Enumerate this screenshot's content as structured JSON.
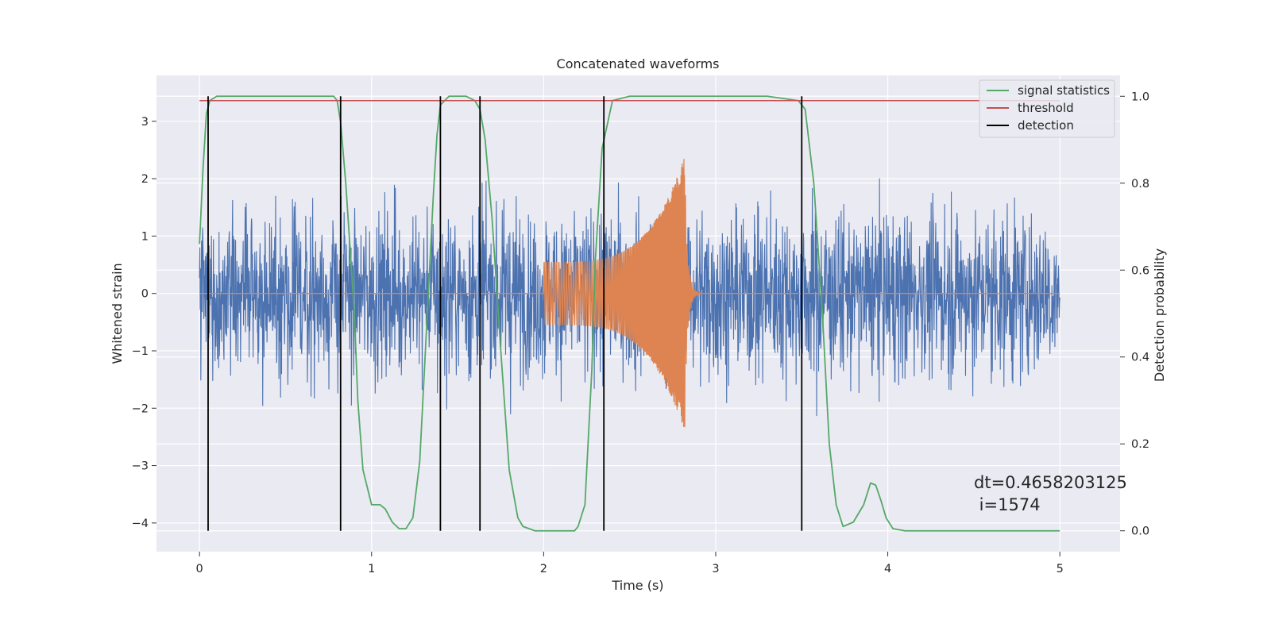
{
  "chart_data": {
    "type": "line",
    "title": "Concatenated waveforms",
    "xlabel": "Time (s)",
    "ylabel": "Whitened strain",
    "y2label": "Detection probability",
    "xlim": [
      -0.25,
      5.35
    ],
    "ylim": [
      -4.5,
      3.8
    ],
    "y2lim": [
      -0.048,
      1.048
    ],
    "xticks": [
      0,
      1,
      2,
      3,
      4,
      5
    ],
    "yticks": [
      -4,
      -3,
      -2,
      -1,
      0,
      1,
      2,
      3
    ],
    "y2ticks": [
      0.0,
      0.2,
      0.4,
      0.6,
      0.8,
      1.0
    ],
    "grid": true,
    "legend_position": "top-right",
    "legend": [
      "signal statistics",
      "threshold",
      "detection"
    ],
    "annotation": [
      "dt=0.4658203125",
      " i=1574"
    ],
    "colors": {
      "background": "#eaeaf2",
      "grid": "#ffffff",
      "strain": "#4c72b0",
      "waveform": "#dd8452",
      "signal_statistics": "#55a868",
      "threshold": "#c44e52",
      "detection": "#000000"
    },
    "series": [
      {
        "name": "strain",
        "kind": "noise",
        "axis": "left",
        "x_range": [
          0,
          5
        ],
        "std": 0.72,
        "peak_min": -3.4,
        "peak_max": 3.4
      },
      {
        "name": "waveform",
        "kind": "chirp",
        "axis": "left",
        "t_start": 2.0,
        "t_merge": 2.82,
        "t_end": 5.0,
        "amp_start": 0.55,
        "amp_peak": 2.4,
        "ringdown_end": 2.95
      },
      {
        "name": "signal statistics",
        "axis": "right",
        "x": [
          0,
          0.02,
          0.04,
          0.06,
          0.1,
          0.2,
          0.6,
          0.78,
          0.8,
          0.82,
          0.85,
          0.9,
          0.92,
          0.95,
          1.0,
          1.05,
          1.08,
          1.12,
          1.16,
          1.2,
          1.24,
          1.28,
          1.32,
          1.36,
          1.38,
          1.4,
          1.45,
          1.5,
          1.55,
          1.6,
          1.63,
          1.66,
          1.7,
          1.75,
          1.8,
          1.85,
          1.88,
          1.95,
          2.1,
          2.18,
          2.2,
          2.24,
          2.28,
          2.3,
          2.34,
          2.4,
          2.5,
          3.3,
          3.48,
          3.52,
          3.57,
          3.62,
          3.66,
          3.7,
          3.74,
          3.8,
          3.86,
          3.9,
          3.93,
          3.96,
          3.99,
          4.03,
          4.1,
          4.5,
          5.0
        ],
        "y": [
          0.66,
          0.83,
          0.96,
          0.99,
          1.0,
          1.0,
          1.0,
          1.0,
          0.99,
          0.94,
          0.8,
          0.5,
          0.3,
          0.14,
          0.06,
          0.06,
          0.05,
          0.02,
          0.005,
          0.005,
          0.03,
          0.16,
          0.47,
          0.78,
          0.91,
          0.98,
          1.0,
          1.0,
          1.0,
          0.99,
          0.97,
          0.9,
          0.72,
          0.42,
          0.14,
          0.03,
          0.01,
          0.0,
          0.0,
          0.0,
          0.01,
          0.06,
          0.37,
          0.62,
          0.88,
          0.99,
          1.0,
          1.0,
          0.99,
          0.97,
          0.8,
          0.5,
          0.2,
          0.06,
          0.01,
          0.02,
          0.06,
          0.11,
          0.105,
          0.07,
          0.03,
          0.005,
          0.0,
          0.0,
          0.0
        ]
      },
      {
        "name": "threshold",
        "axis": "right",
        "x": [
          0,
          5
        ],
        "y": [
          0.99,
          0.99
        ]
      }
    ],
    "detections": [
      0.05,
      0.82,
      1.4,
      1.63,
      2.35,
      3.5
    ]
  }
}
